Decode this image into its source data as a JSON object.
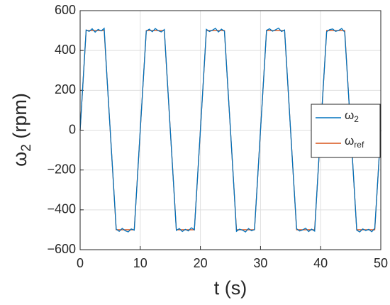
{
  "chart_data": {
    "type": "line",
    "x_label": "t (s)",
    "y_label": "ω2 (rpm)",
    "x": [
      0,
      0.5,
      1,
      1.5,
      2,
      2.5,
      3,
      3.5,
      4,
      4.5,
      5,
      5.5,
      6,
      6.5,
      7,
      7.5,
      8,
      8.5,
      9,
      9.5,
      10,
      10.5,
      11,
      11.5,
      12,
      12.5,
      13,
      13.5,
      14,
      14.5,
      15,
      15.5,
      16,
      16.5,
      17,
      17.5,
      18,
      18.5,
      19,
      19.5,
      20,
      20.5,
      21,
      21.5,
      22,
      22.5,
      23,
      23.5,
      24,
      24.5,
      25,
      25.5,
      26,
      26.5,
      27,
      27.5,
      28,
      28.5,
      29,
      29.5,
      30,
      30.5,
      31,
      31.5,
      32,
      32.5,
      33,
      33.5,
      34,
      34.5,
      35,
      35.5,
      36,
      36.5,
      37,
      37.5,
      38,
      38.5,
      39,
      39.5,
      40,
      40.5,
      41,
      41.5,
      42,
      42.5,
      43,
      43.5,
      44,
      44.5,
      45,
      45.5,
      46,
      46.5,
      47,
      47.5,
      48,
      48.5,
      49,
      49.5,
      50
    ],
    "series": [
      {
        "name": "ω2",
        "color": "#0072bd",
        "values": [
          0,
          252,
          503,
          496,
          509,
          492,
          506,
          498,
          511,
          248,
          1,
          -247,
          -497,
          -508,
          -493,
          -505,
          -511,
          -496,
          -502,
          -253,
          2,
          249,
          497,
          507,
          494,
          510,
          499,
          493,
          505,
          251,
          -2,
          -251,
          -503,
          -494,
          -509,
          -498,
          -506,
          -490,
          -500,
          -248,
          -1,
          253,
          506,
          495,
          502,
          511,
          493,
          507,
          497,
          249,
          3,
          -249,
          -508,
          -497,
          -502,
          -511,
          -494,
          -505,
          -499,
          -252,
          1,
          247,
          501,
          509,
          497,
          504,
          512,
          495,
          503,
          252,
          -1,
          -252,
          -495,
          -506,
          -501,
          -492,
          -509,
          -497,
          -507,
          -247,
          3,
          251,
          494,
          505,
          508,
          496,
          501,
          510,
          492,
          247,
          2,
          -248,
          -502,
          -511,
          -496,
          -504,
          -498,
          -510,
          -493,
          -251,
          1
        ]
      },
      {
        "name": "ωref",
        "color": "#d95319",
        "values": [
          0,
          250,
          500,
          500,
          500,
          500,
          500,
          500,
          500,
          250,
          0,
          -250,
          -500,
          -500,
          -500,
          -500,
          -500,
          -500,
          -500,
          -250,
          0,
          250,
          500,
          500,
          500,
          500,
          500,
          500,
          500,
          250,
          0,
          -250,
          -500,
          -500,
          -500,
          -500,
          -500,
          -500,
          -500,
          -250,
          0,
          250,
          500,
          500,
          500,
          500,
          500,
          500,
          500,
          250,
          0,
          -250,
          -500,
          -500,
          -500,
          -500,
          -500,
          -500,
          -500,
          -250,
          0,
          250,
          500,
          500,
          500,
          500,
          500,
          500,
          500,
          250,
          0,
          -250,
          -500,
          -500,
          -500,
          -500,
          -500,
          -500,
          -500,
          -250,
          0,
          250,
          500,
          500,
          500,
          500,
          500,
          500,
          500,
          250,
          0,
          -250,
          -500,
          -500,
          -500,
          -500,
          -500,
          -500,
          -500,
          -250,
          0
        ]
      }
    ],
    "xlim": [
      0,
      50
    ],
    "xticks": [
      0,
      10,
      20,
      30,
      40,
      50
    ],
    "ylim": [
      -600,
      600
    ],
    "yticks": [
      {
        "value": -600,
        "label": "−600"
      },
      {
        "value": -400,
        "label": "−400"
      },
      {
        "value": -200,
        "label": "−200"
      },
      0,
      200,
      400,
      600
    ],
    "grid": true,
    "legend": "right"
  }
}
